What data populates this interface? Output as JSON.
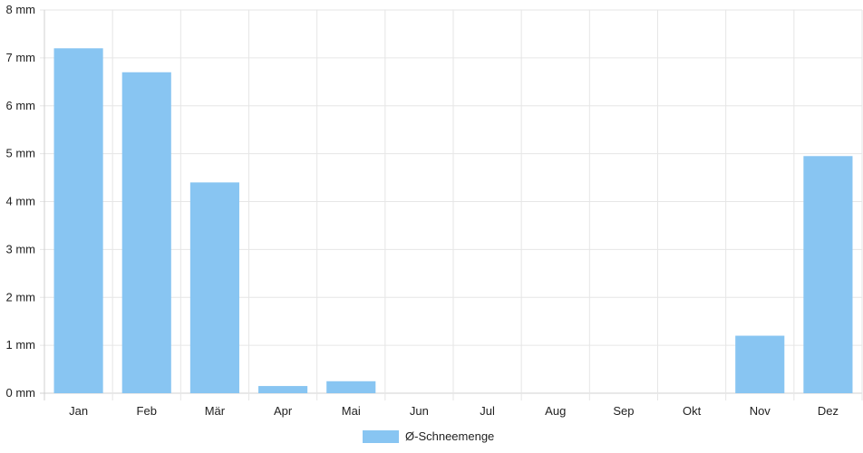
{
  "chart_data": {
    "type": "bar",
    "categories": [
      "Jan",
      "Feb",
      "Mär",
      "Apr",
      "Mai",
      "Jun",
      "Jul",
      "Aug",
      "Sep",
      "Okt",
      "Nov",
      "Dez"
    ],
    "series": [
      {
        "name": "Ø-Schneemenge",
        "values": [
          7.2,
          6.7,
          4.4,
          0.15,
          0.25,
          0,
          0,
          0,
          0,
          0,
          1.2,
          4.95
        ],
        "color": "#88c5f2"
      }
    ],
    "y_ticks": [
      "0 mm",
      "1 mm",
      "2 mm",
      "3 mm",
      "4 mm",
      "5 mm",
      "6 mm",
      "7 mm",
      "8 mm"
    ],
    "ylim": [
      0,
      8
    ],
    "grid": true,
    "legend_position": "bottom-center",
    "grid_color": "#e6e6e6",
    "axis_color": "#d0d0d0"
  }
}
